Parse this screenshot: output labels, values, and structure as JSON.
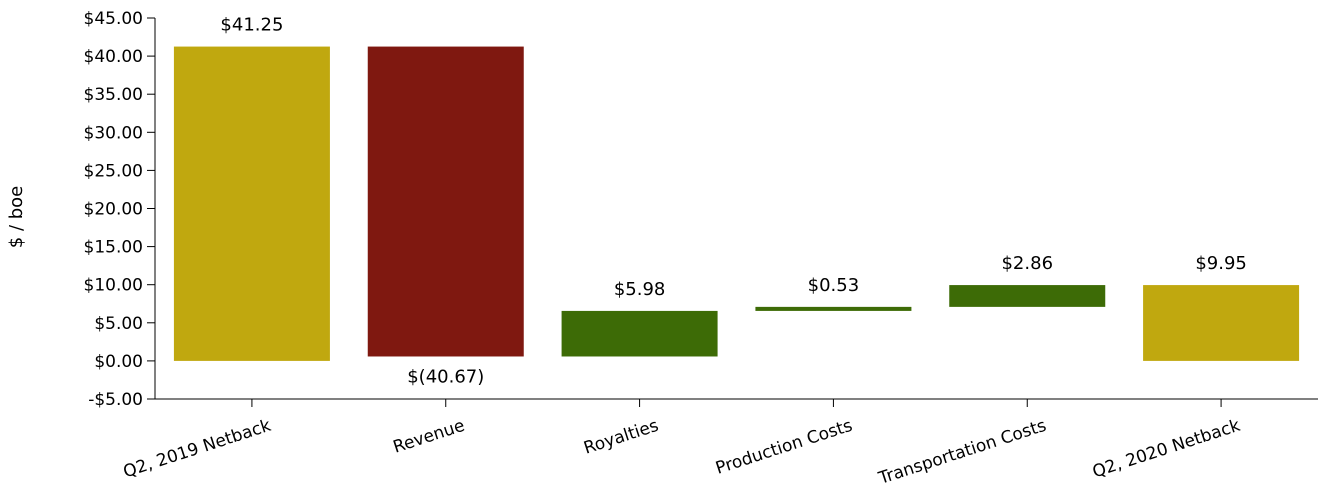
{
  "chart_data": {
    "type": "bar",
    "subtype": "waterfall",
    "title": "",
    "xlabel": "",
    "ylabel": "$ / boe",
    "ylim": [
      -5,
      45
    ],
    "y_ticks": [
      -5,
      0,
      5,
      10,
      15,
      20,
      25,
      30,
      35,
      40,
      45
    ],
    "y_tick_labels": [
      "-$5.00",
      "$0.00",
      "$5.00",
      "$10.00",
      "$15.00",
      "$20.00",
      "$25.00",
      "$30.00",
      "$35.00",
      "$40.00",
      "$45.00"
    ],
    "grid": false,
    "legend": "none",
    "categories": [
      "Q2, 2019 Netback",
      "Revenue",
      "Royalties",
      "Production Costs",
      "Transportation Costs",
      "Q2, 2020 Netback"
    ],
    "values": [
      41.25,
      -40.67,
      5.98,
      0.53,
      2.86,
      9.95
    ],
    "bar_kind": [
      "total",
      "delta",
      "delta",
      "delta",
      "delta",
      "total"
    ],
    "data_labels": [
      "$41.25",
      "$(40.67)",
      "$5.98",
      "$0.53",
      "$2.86",
      "$9.95"
    ],
    "colors": {
      "total": "#c0a80f",
      "negative": "#7f1810",
      "positive": "#3d6b06"
    }
  }
}
